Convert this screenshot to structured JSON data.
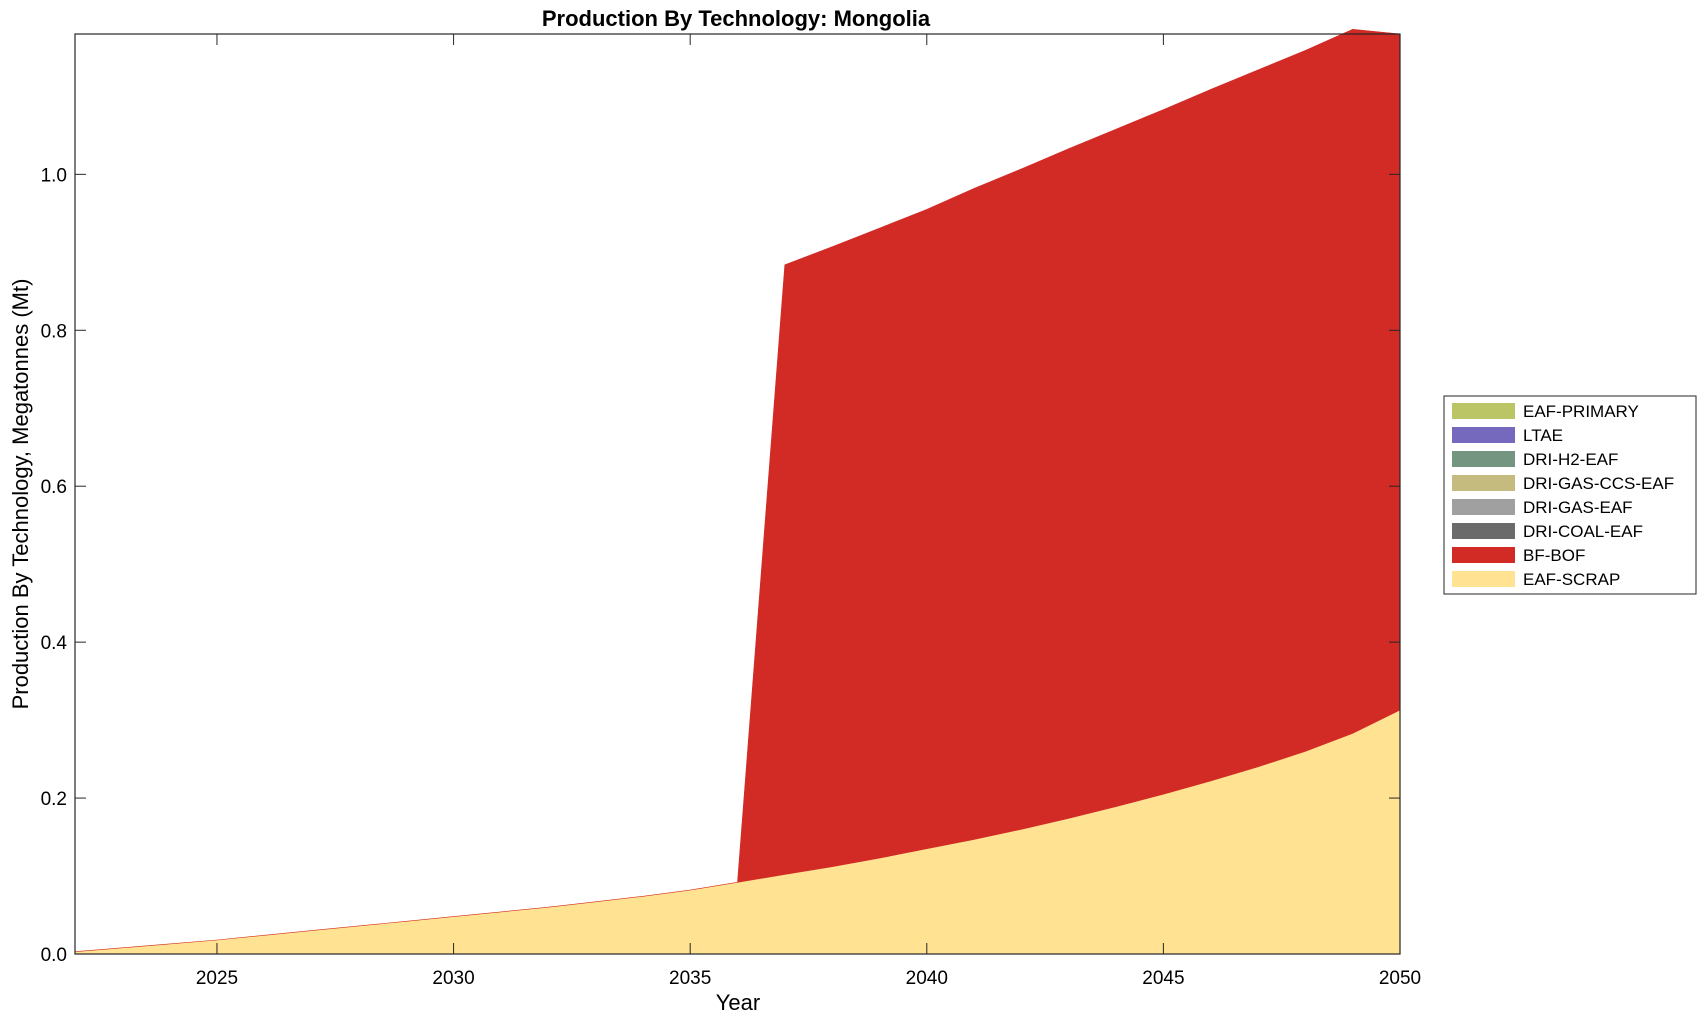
{
  "chart_data": {
    "type": "area",
    "title": "Production By Technology: Mongolia",
    "xlabel": "Year",
    "ylabel": "Production By Technology, Megatonnes (Mt)",
    "xlim": [
      2022,
      2050
    ],
    "ylim": [
      0,
      1.18
    ],
    "xticks": [
      2025,
      2030,
      2035,
      2040,
      2045,
      2050
    ],
    "yticks": [
      0,
      0.2,
      0.4,
      0.6,
      0.8,
      1.0
    ],
    "ytick_labels": [
      "0.0",
      "0.2",
      "0.4",
      "0.6",
      "0.8",
      "1.0"
    ],
    "stacked": true,
    "grid": false,
    "legend_position": "right",
    "x": [
      2022,
      2023,
      2024,
      2025,
      2026,
      2027,
      2028,
      2029,
      2030,
      2031,
      2032,
      2033,
      2034,
      2035,
      2036,
      2037,
      2038,
      2039,
      2040,
      2041,
      2042,
      2043,
      2044,
      2045,
      2046,
      2047,
      2048,
      2049,
      2050
    ],
    "series": [
      {
        "name": "EAF-SCRAP",
        "color": "#FFE392",
        "values": [
          0.003,
          0.008,
          0.013,
          0.018,
          0.024,
          0.03,
          0.036,
          0.042,
          0.048,
          0.054,
          0.06,
          0.067,
          0.074,
          0.082,
          0.092,
          0.102,
          0.112,
          0.123,
          0.135,
          0.147,
          0.16,
          0.174,
          0.189,
          0.205,
          0.222,
          0.24,
          0.26,
          0.283,
          0.313
        ]
      },
      {
        "name": "BF-BOF",
        "color": "#D22B25",
        "values": [
          0,
          0,
          0,
          0,
          0,
          0,
          0,
          0,
          0,
          0,
          0,
          0,
          0,
          0,
          0,
          0.782,
          0.795,
          0.808,
          0.82,
          0.835,
          0.847,
          0.859,
          0.869,
          0.878,
          0.887,
          0.894,
          0.899,
          0.903,
          0.867
        ]
      },
      {
        "name": "DRI-COAL-EAF",
        "color": "#6B6B6B",
        "values": [
          0,
          0,
          0,
          0,
          0,
          0,
          0,
          0,
          0,
          0,
          0,
          0,
          0,
          0,
          0,
          0,
          0,
          0,
          0,
          0,
          0,
          0,
          0,
          0,
          0,
          0,
          0,
          0,
          0
        ]
      },
      {
        "name": "DRI-GAS-EAF",
        "color": "#A0A0A0",
        "values": [
          0,
          0,
          0,
          0,
          0,
          0,
          0,
          0,
          0,
          0,
          0,
          0,
          0,
          0,
          0,
          0,
          0,
          0,
          0,
          0,
          0,
          0,
          0,
          0,
          0,
          0,
          0,
          0,
          0
        ]
      },
      {
        "name": "DRI-GAS-CCS-EAF",
        "color": "#C5BB7E",
        "values": [
          0,
          0,
          0,
          0,
          0,
          0,
          0,
          0,
          0,
          0,
          0,
          0,
          0,
          0,
          0,
          0,
          0,
          0,
          0,
          0,
          0,
          0,
          0,
          0,
          0,
          0,
          0,
          0,
          0
        ]
      },
      {
        "name": "DRI-H2-EAF",
        "color": "#749681",
        "values": [
          0,
          0,
          0,
          0,
          0,
          0,
          0,
          0,
          0,
          0,
          0,
          0,
          0,
          0,
          0,
          0,
          0,
          0,
          0,
          0,
          0,
          0,
          0,
          0,
          0,
          0,
          0,
          0,
          0
        ]
      },
      {
        "name": "LTAE",
        "color": "#7469BD",
        "values": [
          0,
          0,
          0,
          0,
          0,
          0,
          0,
          0,
          0,
          0,
          0,
          0,
          0,
          0,
          0,
          0,
          0,
          0,
          0,
          0,
          0,
          0,
          0,
          0,
          0,
          0,
          0,
          0,
          0
        ]
      },
      {
        "name": "EAF-PRIMARY",
        "color": "#BCC566",
        "values": [
          0,
          0,
          0,
          0,
          0,
          0,
          0,
          0,
          0,
          0,
          0,
          0,
          0,
          0,
          0,
          0,
          0,
          0,
          0,
          0,
          0,
          0,
          0,
          0,
          0,
          0,
          0,
          0,
          0
        ]
      }
    ],
    "legend_order": [
      "EAF-PRIMARY",
      "LTAE",
      "DRI-H2-EAF",
      "DRI-GAS-CCS-EAF",
      "DRI-GAS-EAF",
      "DRI-COAL-EAF",
      "BF-BOF",
      "EAF-SCRAP"
    ]
  }
}
